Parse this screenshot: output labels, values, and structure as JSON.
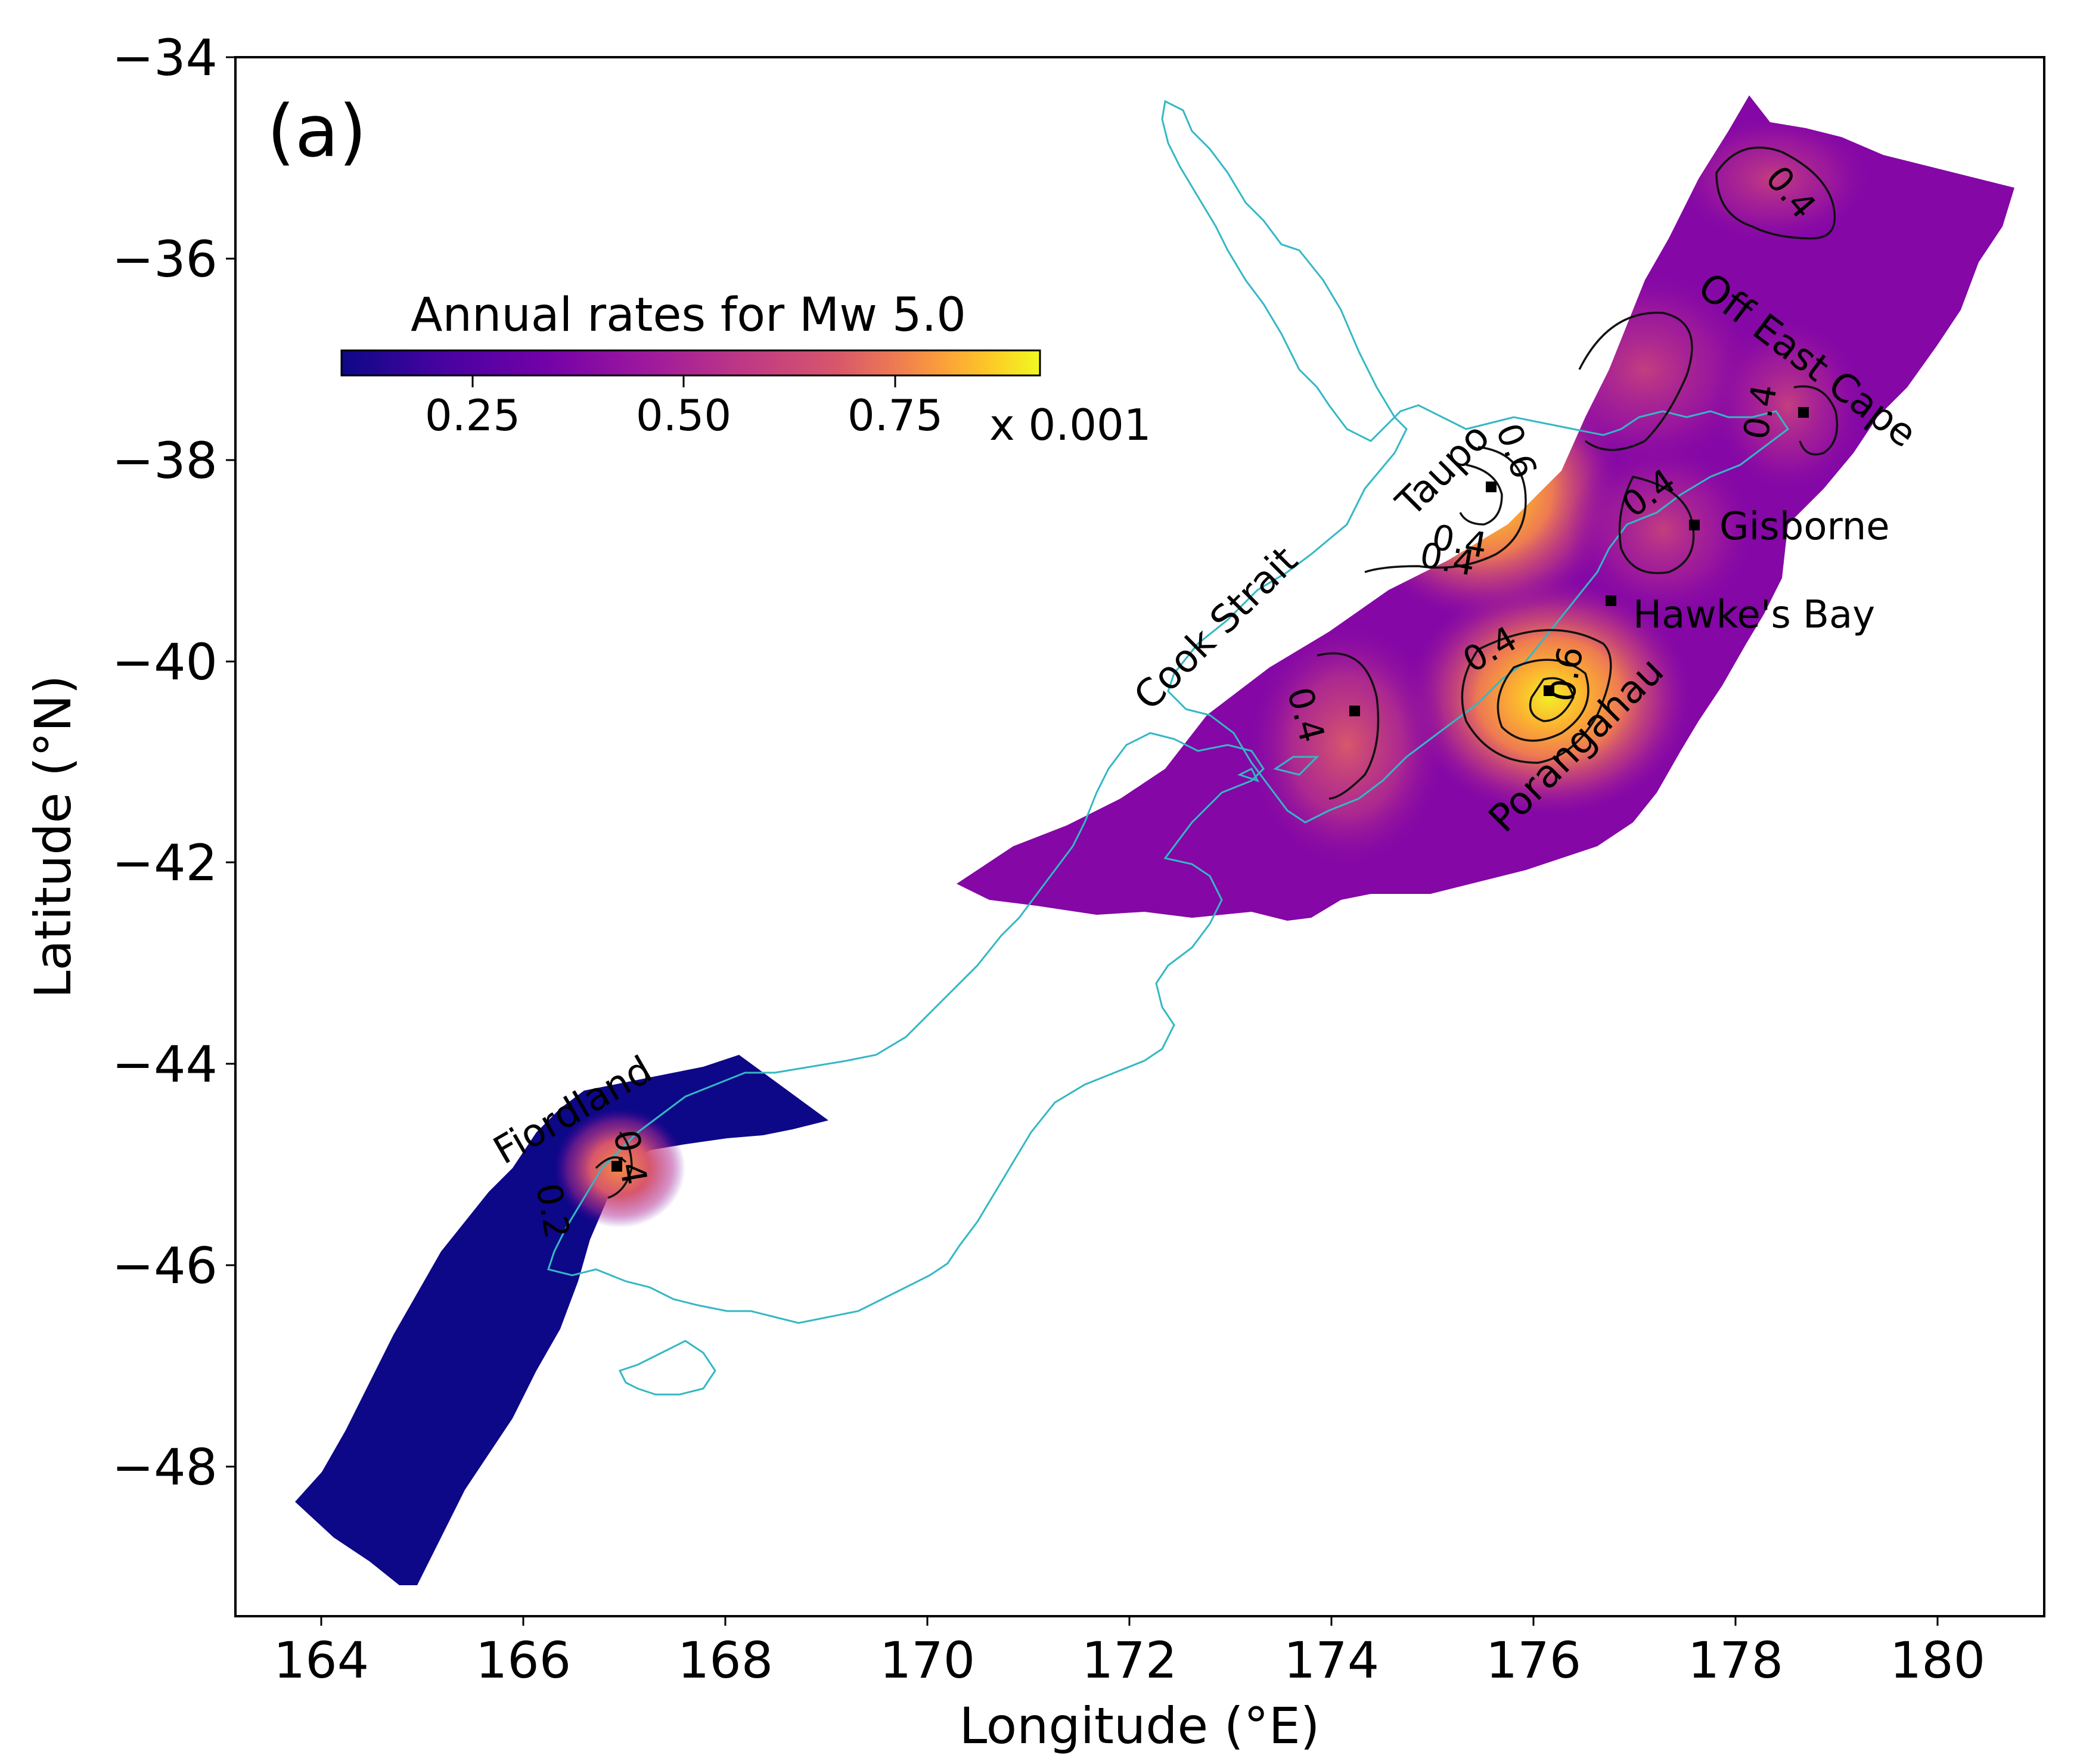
{
  "panel_label": "(a)",
  "axes": {
    "xlabel": "Longitude (°E)",
    "ylabel": "Latitude (°N)",
    "x_ticks": [
      "164",
      "166",
      "168",
      "170",
      "172",
      "174",
      "176",
      "178",
      "180"
    ],
    "y_ticks": [
      "−34",
      "−36",
      "−38",
      "−40",
      "−42",
      "−44",
      "−46",
      "−48"
    ]
  },
  "colorbar": {
    "title": "Annual rates for Mw 5.0",
    "ticks": [
      "0.25",
      "0.50",
      "0.75"
    ],
    "multiplier": "x 0.001",
    "colormap": "plasma"
  },
  "places": [
    {
      "name": "Taupo"
    },
    {
      "name": "Off East Cape"
    },
    {
      "name": "Gisborne"
    },
    {
      "name": "Hawke's Bay"
    },
    {
      "name": "Cook Strait"
    },
    {
      "name": "Porangahau"
    },
    {
      "name": "Fiordland"
    }
  ],
  "contour_labels": [
    "0.4",
    "0.6",
    "0.4",
    "0.4",
    "0.4",
    "0.4",
    "0.4",
    "0.6",
    "0.4",
    "0.4",
    "0.2"
  ],
  "chart_data": {
    "type": "heatmap",
    "title": "",
    "xlabel": "Longitude (°E)",
    "ylabel": "Latitude (°N)",
    "xlim": [
      163.6,
      181.5
    ],
    "ylim": [
      -49.2,
      -34.0
    ],
    "color_range": [
      0.08,
      0.92
    ],
    "color_units": "x 0.001",
    "contour_levels": [
      0.2,
      0.4,
      0.6
    ],
    "coastline_color": "#33b8c4",
    "points": [
      {
        "name": "Taupo",
        "lon": 176.0,
        "lat": -38.25
      },
      {
        "name": "Off East Cape",
        "lon": 179.1,
        "lat": -37.55
      },
      {
        "name": "Gisborne",
        "lon": 178.05,
        "lat": -38.65
      },
      {
        "name": "Hawke's Bay",
        "lon": 177.2,
        "lat": -39.4
      },
      {
        "name": "Cook Strait",
        "lon": 174.65,
        "lat": -40.5
      },
      {
        "name": "Porangahau",
        "lon": 176.6,
        "lat": -40.3
      },
      {
        "name": "Fiordland",
        "lon": 167.35,
        "lat": -45.05
      }
    ],
    "hotspots": [
      {
        "lon": 176.55,
        "lat": -40.3,
        "value": 0.88
      },
      {
        "lon": 176.0,
        "lat": -38.3,
        "value": 0.85
      },
      {
        "lon": 167.4,
        "lat": -45.0,
        "value": 0.62
      },
      {
        "lon": 174.6,
        "lat": -40.7,
        "value": 0.48
      },
      {
        "lon": 178.0,
        "lat": -38.7,
        "value": 0.44
      },
      {
        "lon": 177.6,
        "lat": -37.2,
        "value": 0.42
      },
      {
        "lon": 179.2,
        "lat": -37.6,
        "value": 0.42
      },
      {
        "lon": 179.0,
        "lat": -35.4,
        "value": 0.38
      }
    ]
  }
}
